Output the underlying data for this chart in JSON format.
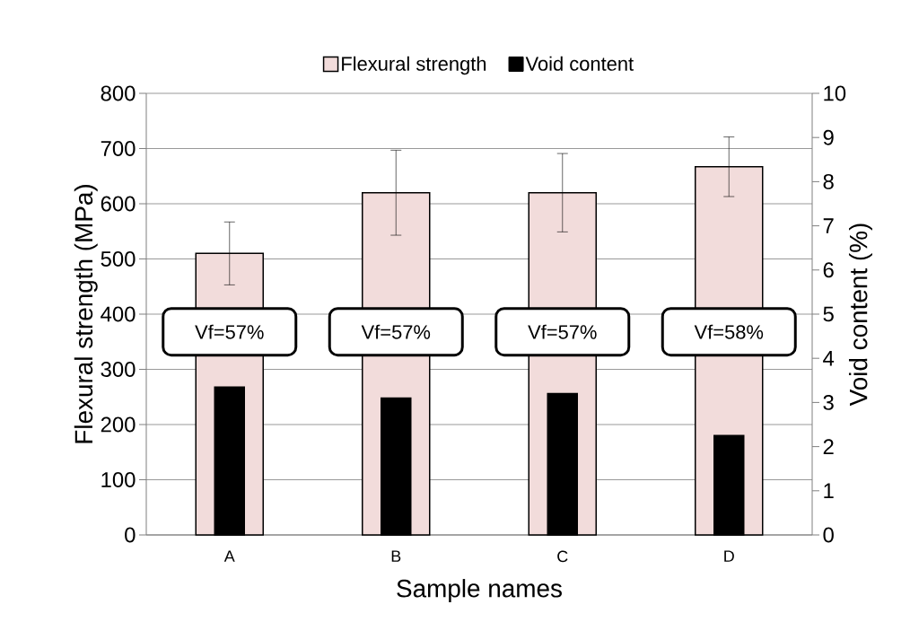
{
  "chart_data": {
    "type": "bar",
    "categories": [
      "A",
      "B",
      "C",
      "D"
    ],
    "series": [
      {
        "name": "Flexural strength",
        "color": "#f2dcdb",
        "values": [
          510,
          620,
          620,
          667
        ],
        "errors": [
          57,
          77,
          71,
          54
        ]
      },
      {
        "name": "Void content",
        "color": "#000000",
        "values": [
          3.35,
          3.1,
          3.2,
          2.25
        ],
        "axis": "y2"
      }
    ],
    "xlabel": "Sample names",
    "ylabel": "Flexural strength (MPa)",
    "y2label": "Void content  (%)",
    "ylim": [
      0,
      800
    ],
    "yticks": [
      0,
      100,
      200,
      300,
      400,
      500,
      600,
      700,
      800
    ],
    "y2lim": [
      0,
      10
    ],
    "y2ticks": [
      0,
      1,
      2,
      3,
      4,
      5,
      6,
      7,
      8,
      9,
      10
    ],
    "grid": "y",
    "legend": "top",
    "annotations": [
      "Vf=57%",
      "Vf=57%",
      "Vf=57%",
      "Vf=58%"
    ]
  }
}
